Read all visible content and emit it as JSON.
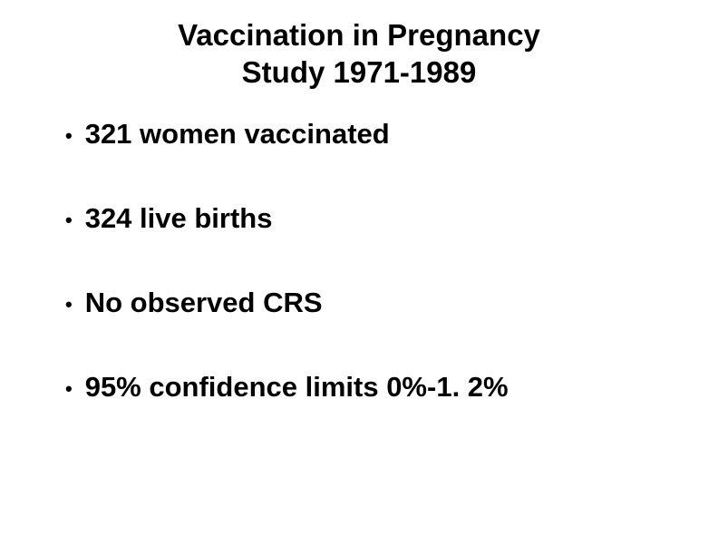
{
  "slide": {
    "title_line1": "Vaccination in Pregnancy",
    "title_line2": "Study 1971-1989",
    "title_fontsize": 33,
    "title_fontweight": "bold",
    "bullets": [
      {
        "text": "321 women vaccinated"
      },
      {
        "text": "324 live births"
      },
      {
        "text": "No observed CRS"
      },
      {
        "text": "95% confidence limits 0%-1. 2%"
      }
    ],
    "bullet_fontsize": 31,
    "bullet_fontweight": "bold",
    "bullet_marker": "•",
    "text_color": "#000000",
    "background_color": "#ffffff",
    "font_family": "Arial"
  }
}
